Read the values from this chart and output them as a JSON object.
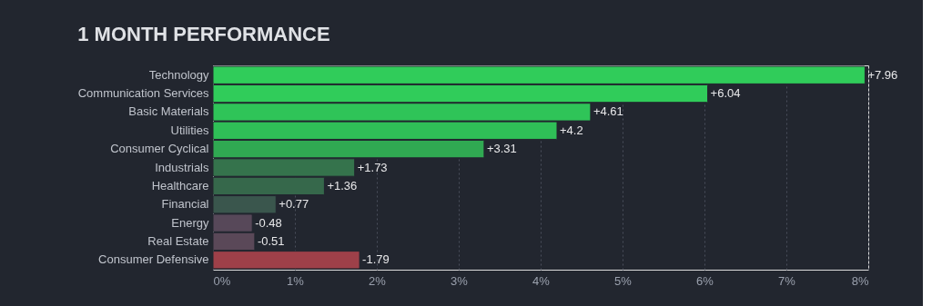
{
  "chart_data": {
    "type": "bar",
    "orientation": "horizontal",
    "title": "1 MONTH PERFORMANCE",
    "categories": [
      "Technology",
      "Communication Services",
      "Basic Materials",
      "Utilities",
      "Consumer Cyclical",
      "Industrials",
      "Healthcare",
      "Financial",
      "Energy",
      "Real Estate",
      "Consumer Defensive"
    ],
    "values": [
      7.96,
      6.04,
      4.61,
      4.2,
      3.31,
      1.73,
      1.36,
      0.77,
      -0.48,
      -0.51,
      -1.79
    ],
    "base": [
      0,
      0,
      0,
      0,
      0,
      0,
      0,
      0,
      0.48,
      0.51,
      1.79
    ],
    "value_labels": [
      "+7.96",
      "+6.04",
      "+4.61",
      "+4.2",
      "+3.31",
      "+1.73",
      "+1.36",
      "+0.77",
      "-0.48",
      "-0.51",
      "-1.79"
    ],
    "colors": [
      "#30cc5a",
      "#30cc5a",
      "#2fc458",
      "#2fbf57",
      "#30a952",
      "#35734c",
      "#36684b",
      "#3a564d",
      "#574859",
      "#5a4858",
      "#9e4049"
    ],
    "xlim": [
      0,
      8
    ],
    "xticks": [
      {
        "value": 0,
        "label": "0%"
      },
      {
        "value": 1,
        "label": "1%"
      },
      {
        "value": 2,
        "label": "2%"
      },
      {
        "value": 3,
        "label": "3%"
      },
      {
        "value": 4,
        "label": "4%"
      },
      {
        "value": 5,
        "label": "5%"
      },
      {
        "value": 6,
        "label": "6%"
      },
      {
        "value": 7,
        "label": "7%"
      },
      {
        "value": 8,
        "label": "8%"
      }
    ],
    "grid": "x"
  }
}
